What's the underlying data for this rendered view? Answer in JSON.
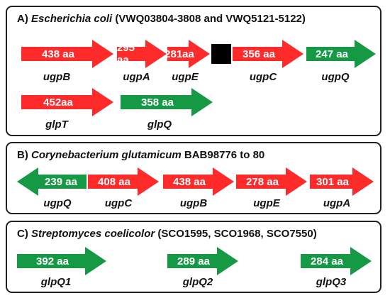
{
  "panel_a": {
    "title_prefix": "A)",
    "organism": "Escherichia coli",
    "title_suffix": "(VWQ03804-3808 and VWQ5121-5122)",
    "genes": [
      {
        "size": "438 aa",
        "name": "ugpB",
        "color": "#ff2a2a",
        "direction": "right"
      },
      {
        "size": "295 aa",
        "name": "ugpA",
        "color": "#ff2a2a",
        "direction": "right"
      },
      {
        "size": "281aa",
        "name": "ugpE",
        "color": "#ff2a2a",
        "direction": "right"
      },
      {
        "size": "356 aa",
        "name": "ugpC",
        "color": "#ff2a2a",
        "direction": "right"
      },
      {
        "size": "247  aa",
        "name": "ugpQ",
        "color": "#169944",
        "direction": "right"
      },
      {
        "size": "452aa",
        "name": "glpT",
        "color": "#ff2a2a",
        "direction": "right"
      },
      {
        "size": "358 aa",
        "name": "glpQ",
        "color": "#169944",
        "direction": "right"
      }
    ]
  },
  "panel_b": {
    "title_prefix": "B)",
    "organism": "Corynebacterium glutamicum",
    "title_suffix": "BAB98776 to 80",
    "genes": [
      {
        "size": "239 aa",
        "name": "ugpQ",
        "color": "#169944",
        "direction": "left"
      },
      {
        "size": "408 aa",
        "name": "ugpC",
        "color": "#ff2a2a",
        "direction": "right"
      },
      {
        "size": "438 aa",
        "name": "ugpB",
        "color": "#ff2a2a",
        "direction": "right"
      },
      {
        "size": "278 aa",
        "name": "ugpE",
        "color": "#ff2a2a",
        "direction": "right"
      },
      {
        "size": "301 aa",
        "name": "ugpA",
        "color": "#ff2a2a",
        "direction": "right"
      }
    ]
  },
  "panel_c": {
    "title_prefix": "C)",
    "organism": "Streptomyces coelicolor",
    "title_suffix": "(SCO1595, SCO1968, SCO7550)",
    "genes": [
      {
        "size": "392 aa",
        "name": "glpQ1",
        "color": "#169944",
        "direction": "right"
      },
      {
        "size": "289 aa",
        "name": "glpQ2",
        "color": "#169944",
        "direction": "right"
      },
      {
        "size": "284 aa",
        "name": "glpQ3",
        "color": "#169944",
        "direction": "right"
      }
    ]
  }
}
